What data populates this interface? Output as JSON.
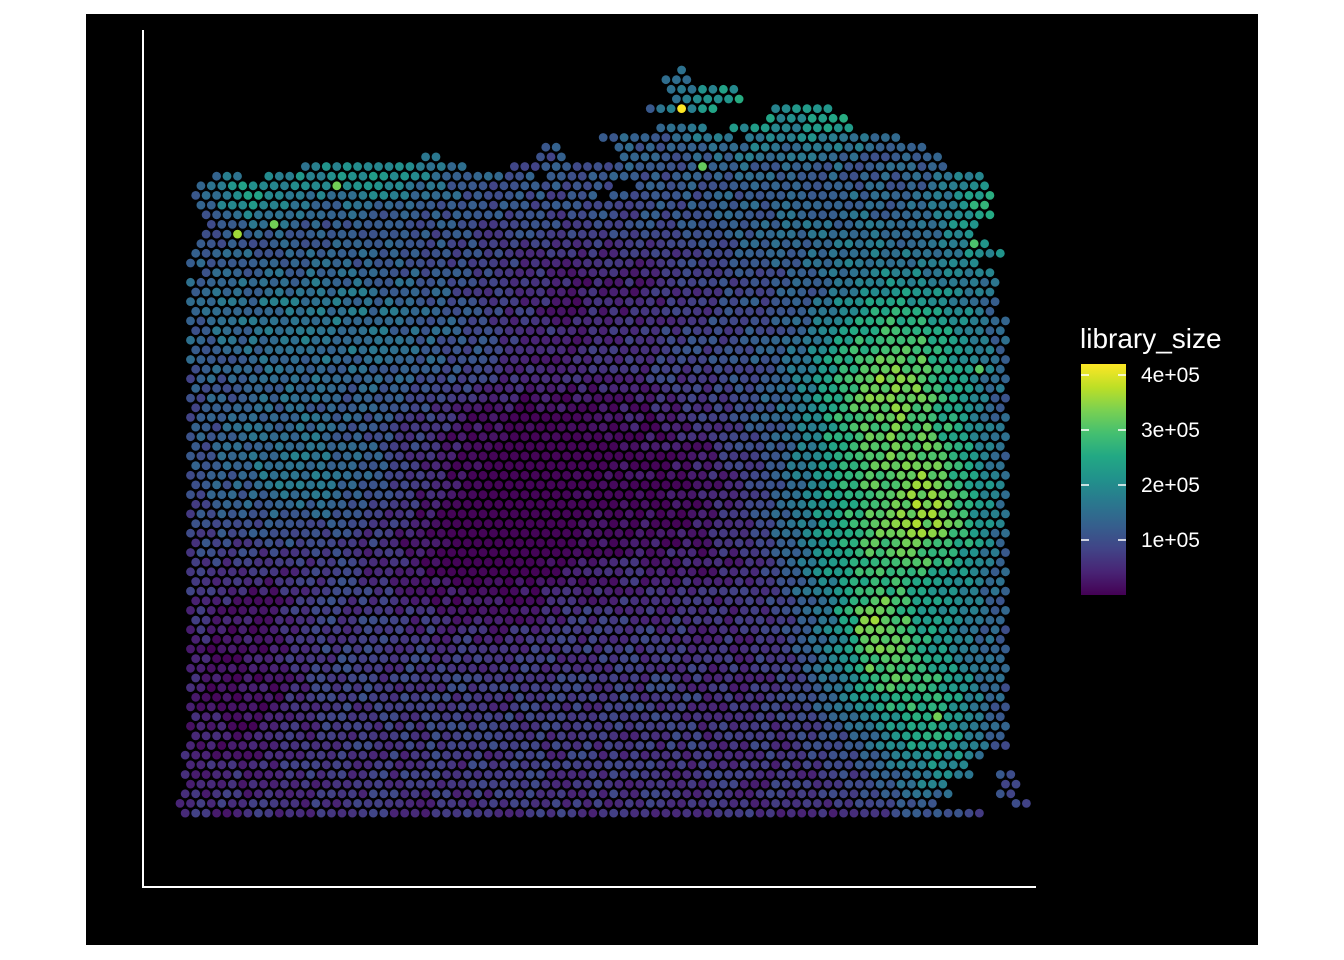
{
  "chart_data": {
    "type": "scatter",
    "subtype": "spatial hexagonal spot map",
    "title": "",
    "xlabel": "",
    "ylabel": "",
    "background": "#000000",
    "axis_color": "#ffffff",
    "axis_ticks": false,
    "grid": false,
    "color_variable": "library_size",
    "colorscale": "viridis",
    "color_range": [
      0,
      420000
    ],
    "legend": {
      "title": "library_size",
      "position": "right",
      "ticks": [
        {
          "value": 400000,
          "label": "4e+05"
        },
        {
          "value": 300000,
          "label": "3e+05"
        },
        {
          "value": 200000,
          "label": "2e+05"
        },
        {
          "value": 100000,
          "label": "1e+05"
        }
      ]
    },
    "grid_shape": {
      "columns": 84,
      "rows": 78
    },
    "row_extents": [
      [
        [
          48,
          48
        ]
      ],
      [
        [
          46,
          48
        ]
      ],
      [
        [
          47,
          53
        ]
      ],
      [
        [
          47,
          53
        ]
      ],
      [
        [
          45,
          51
        ],
        [
          57,
          62
        ]
      ],
      [
        [
          56,
          63
        ]
      ],
      [
        [
          46,
          50
        ],
        [
          53,
          64
        ]
      ],
      [
        [
          40,
          52
        ],
        [
          54,
          68
        ]
      ],
      [
        [
          35,
          36
        ],
        [
          42,
          71
        ]
      ],
      [
        [
          23,
          24
        ],
        [
          34,
          36
        ],
        [
          42,
          72
        ]
      ],
      [
        [
          12,
          27
        ],
        [
          32,
          73
        ]
      ],
      [
        [
          3,
          5
        ],
        [
          8,
          33
        ],
        [
          35,
          76
        ]
      ],
      [
        [
          2,
          41
        ],
        [
          44,
          77
        ]
      ],
      [
        [
          1,
          39
        ],
        [
          41,
          77
        ]
      ],
      [
        [
          2,
          77
        ]
      ],
      [
        [
          2,
          77
        ]
      ],
      [
        [
          3,
          76
        ]
      ],
      [
        [
          2,
          75
        ]
      ],
      [
        [
          2,
          77
        ]
      ],
      [
        [
          1,
          78
        ]
      ],
      [
        [
          1,
          76
        ]
      ],
      [
        [
          2,
          77
        ]
      ],
      [
        [
          1,
          78
        ]
      ],
      [
        [
          1,
          77
        ]
      ],
      [
        [
          1,
          78
        ]
      ],
      [
        [
          1,
          77
        ]
      ],
      [
        [
          1,
          79
        ]
      ],
      [
        [
          1,
          78
        ]
      ],
      [
        [
          1,
          79
        ]
      ],
      [
        [
          1,
          78
        ]
      ],
      [
        [
          1,
          79
        ]
      ],
      [
        [
          1,
          78
        ]
      ],
      [
        [
          1,
          79
        ]
      ],
      [
        [
          1,
          78
        ]
      ],
      [
        [
          1,
          79
        ]
      ],
      [
        [
          1,
          78
        ]
      ],
      [
        [
          1,
          79
        ]
      ],
      [
        [
          1,
          78
        ]
      ],
      [
        [
          1,
          79
        ]
      ],
      [
        [
          1,
          78
        ]
      ],
      [
        [
          1,
          79
        ]
      ],
      [
        [
          1,
          78
        ]
      ],
      [
        [
          1,
          79
        ]
      ],
      [
        [
          1,
          78
        ]
      ],
      [
        [
          1,
          79
        ]
      ],
      [
        [
          1,
          78
        ]
      ],
      [
        [
          1,
          79
        ]
      ],
      [
        [
          1,
          78
        ]
      ],
      [
        [
          1,
          79
        ]
      ],
      [
        [
          1,
          78
        ]
      ],
      [
        [
          1,
          79
        ]
      ],
      [
        [
          1,
          78
        ]
      ],
      [
        [
          1,
          79
        ]
      ],
      [
        [
          1,
          78
        ]
      ],
      [
        [
          1,
          79
        ]
      ],
      [
        [
          1,
          78
        ]
      ],
      [
        [
          1,
          79
        ]
      ],
      [
        [
          1,
          78
        ]
      ],
      [
        [
          1,
          79
        ]
      ],
      [
        [
          1,
          78
        ]
      ],
      [
        [
          1,
          79
        ]
      ],
      [
        [
          1,
          78
        ]
      ],
      [
        [
          1,
          79
        ]
      ],
      [
        [
          1,
          78
        ]
      ],
      [
        [
          1,
          79
        ]
      ],
      [
        [
          1,
          78
        ]
      ],
      [
        [
          1,
          79
        ]
      ],
      [
        [
          1,
          78
        ]
      ],
      [
        [
          1,
          79
        ]
      ],
      [
        [
          1,
          78
        ]
      ],
      [
        [
          1,
          79
        ]
      ],
      [
        [
          0,
          76
        ]
      ],
      [
        [
          1,
          75
        ]
      ],
      [
        [
          0,
          75
        ],
        [
          78,
          79
        ]
      ],
      [
        [
          1,
          73
        ],
        [
          79,
          80
        ]
      ],
      [
        [
          0,
          73
        ],
        [
          78,
          79
        ]
      ],
      [
        [
          0,
          72
        ],
        [
          80,
          81
        ]
      ],
      [
        [
          0,
          76
        ]
      ]
    ],
    "value_field": [
      {
        "col": 29,
        "row": 47,
        "sx": 10,
        "sy": 10,
        "value": -120000
      },
      {
        "col": 5,
        "row": 62,
        "sx": 6,
        "sy": 10,
        "value": -70000
      },
      {
        "col": 9,
        "row": 53,
        "sx": 4,
        "sy": 3,
        "value": -30000
      },
      {
        "col": 36,
        "row": 35,
        "sx": 10,
        "sy": 14,
        "value": -80000
      },
      {
        "col": 47,
        "row": 44,
        "sx": 7,
        "sy": 10,
        "value": -50000
      },
      {
        "col": 55,
        "row": 55,
        "sx": 8,
        "sy": 12,
        "value": -40000
      },
      {
        "col": 12,
        "row": 25,
        "sx": 16,
        "sy": 7,
        "value": 70000
      },
      {
        "col": 10,
        "row": 40,
        "sx": 8,
        "sy": 7,
        "value": 60000
      },
      {
        "col": 21,
        "row": 43,
        "sx": 12,
        "sy": 5,
        "value": 45000
      },
      {
        "col": 32,
        "row": 31,
        "sx": 16,
        "sy": 5,
        "value": 35000
      },
      {
        "col": 62,
        "row": 18,
        "sx": 12,
        "sy": 7,
        "value": 45000
      },
      {
        "col": 69,
        "row": 29,
        "sx": 8,
        "sy": 8,
        "value": 160000
      },
      {
        "col": 66,
        "row": 38,
        "sx": 8,
        "sy": 10,
        "value": 150000
      },
      {
        "col": 67,
        "row": 50,
        "sx": 9,
        "sy": 8,
        "value": 160000
      },
      {
        "col": 73,
        "row": 44,
        "sx": 5,
        "sy": 8,
        "value": 120000
      },
      {
        "col": 68,
        "row": 62,
        "sx": 7,
        "sy": 6,
        "value": 170000
      },
      {
        "col": 72,
        "row": 70,
        "sx": 6,
        "sy": 7,
        "value": 140000
      },
      {
        "col": 77,
        "row": 15,
        "sx": 4,
        "sy": 6,
        "value": 140000
      },
      {
        "col": 53,
        "row": 4,
        "sx": 5,
        "sy": 4,
        "value": 120000
      },
      {
        "col": 62,
        "row": 5,
        "sx": 4,
        "sy": 3,
        "value": 110000
      },
      {
        "col": 17,
        "row": 11,
        "sx": 8,
        "sy": 3,
        "value": 100000
      },
      {
        "col": 7,
        "row": 13,
        "sx": 4,
        "sy": 3,
        "value": 100000
      },
      {
        "col": 66,
        "row": 57,
        "sx": 3,
        "sy": 3,
        "value": 100000
      },
      {
        "col": 43,
        "row": 22,
        "sx": 12,
        "sy": 4,
        "value": -30000
      },
      {
        "col": 60,
        "row": 24,
        "sx": 4,
        "sy": 4,
        "value": -20000
      }
    ],
    "highlights": [
      {
        "col": 48,
        "row": 4,
        "value": 420000
      },
      {
        "col": 5,
        "row": 17,
        "value": 360000
      },
      {
        "col": 9,
        "row": 16,
        "value": 330000
      },
      {
        "col": 15,
        "row": 12,
        "value": 330000
      },
      {
        "col": 50,
        "row": 10,
        "value": 320000
      },
      {
        "col": 67,
        "row": 60,
        "value": 340000
      },
      {
        "col": 66,
        "row": 62,
        "value": 330000
      },
      {
        "col": 68,
        "row": 63,
        "value": 320000
      },
      {
        "col": 72,
        "row": 67,
        "value": 330000
      },
      {
        "col": 76,
        "row": 31,
        "value": 310000
      },
      {
        "col": 76,
        "row": 18,
        "value": 300000
      }
    ]
  }
}
